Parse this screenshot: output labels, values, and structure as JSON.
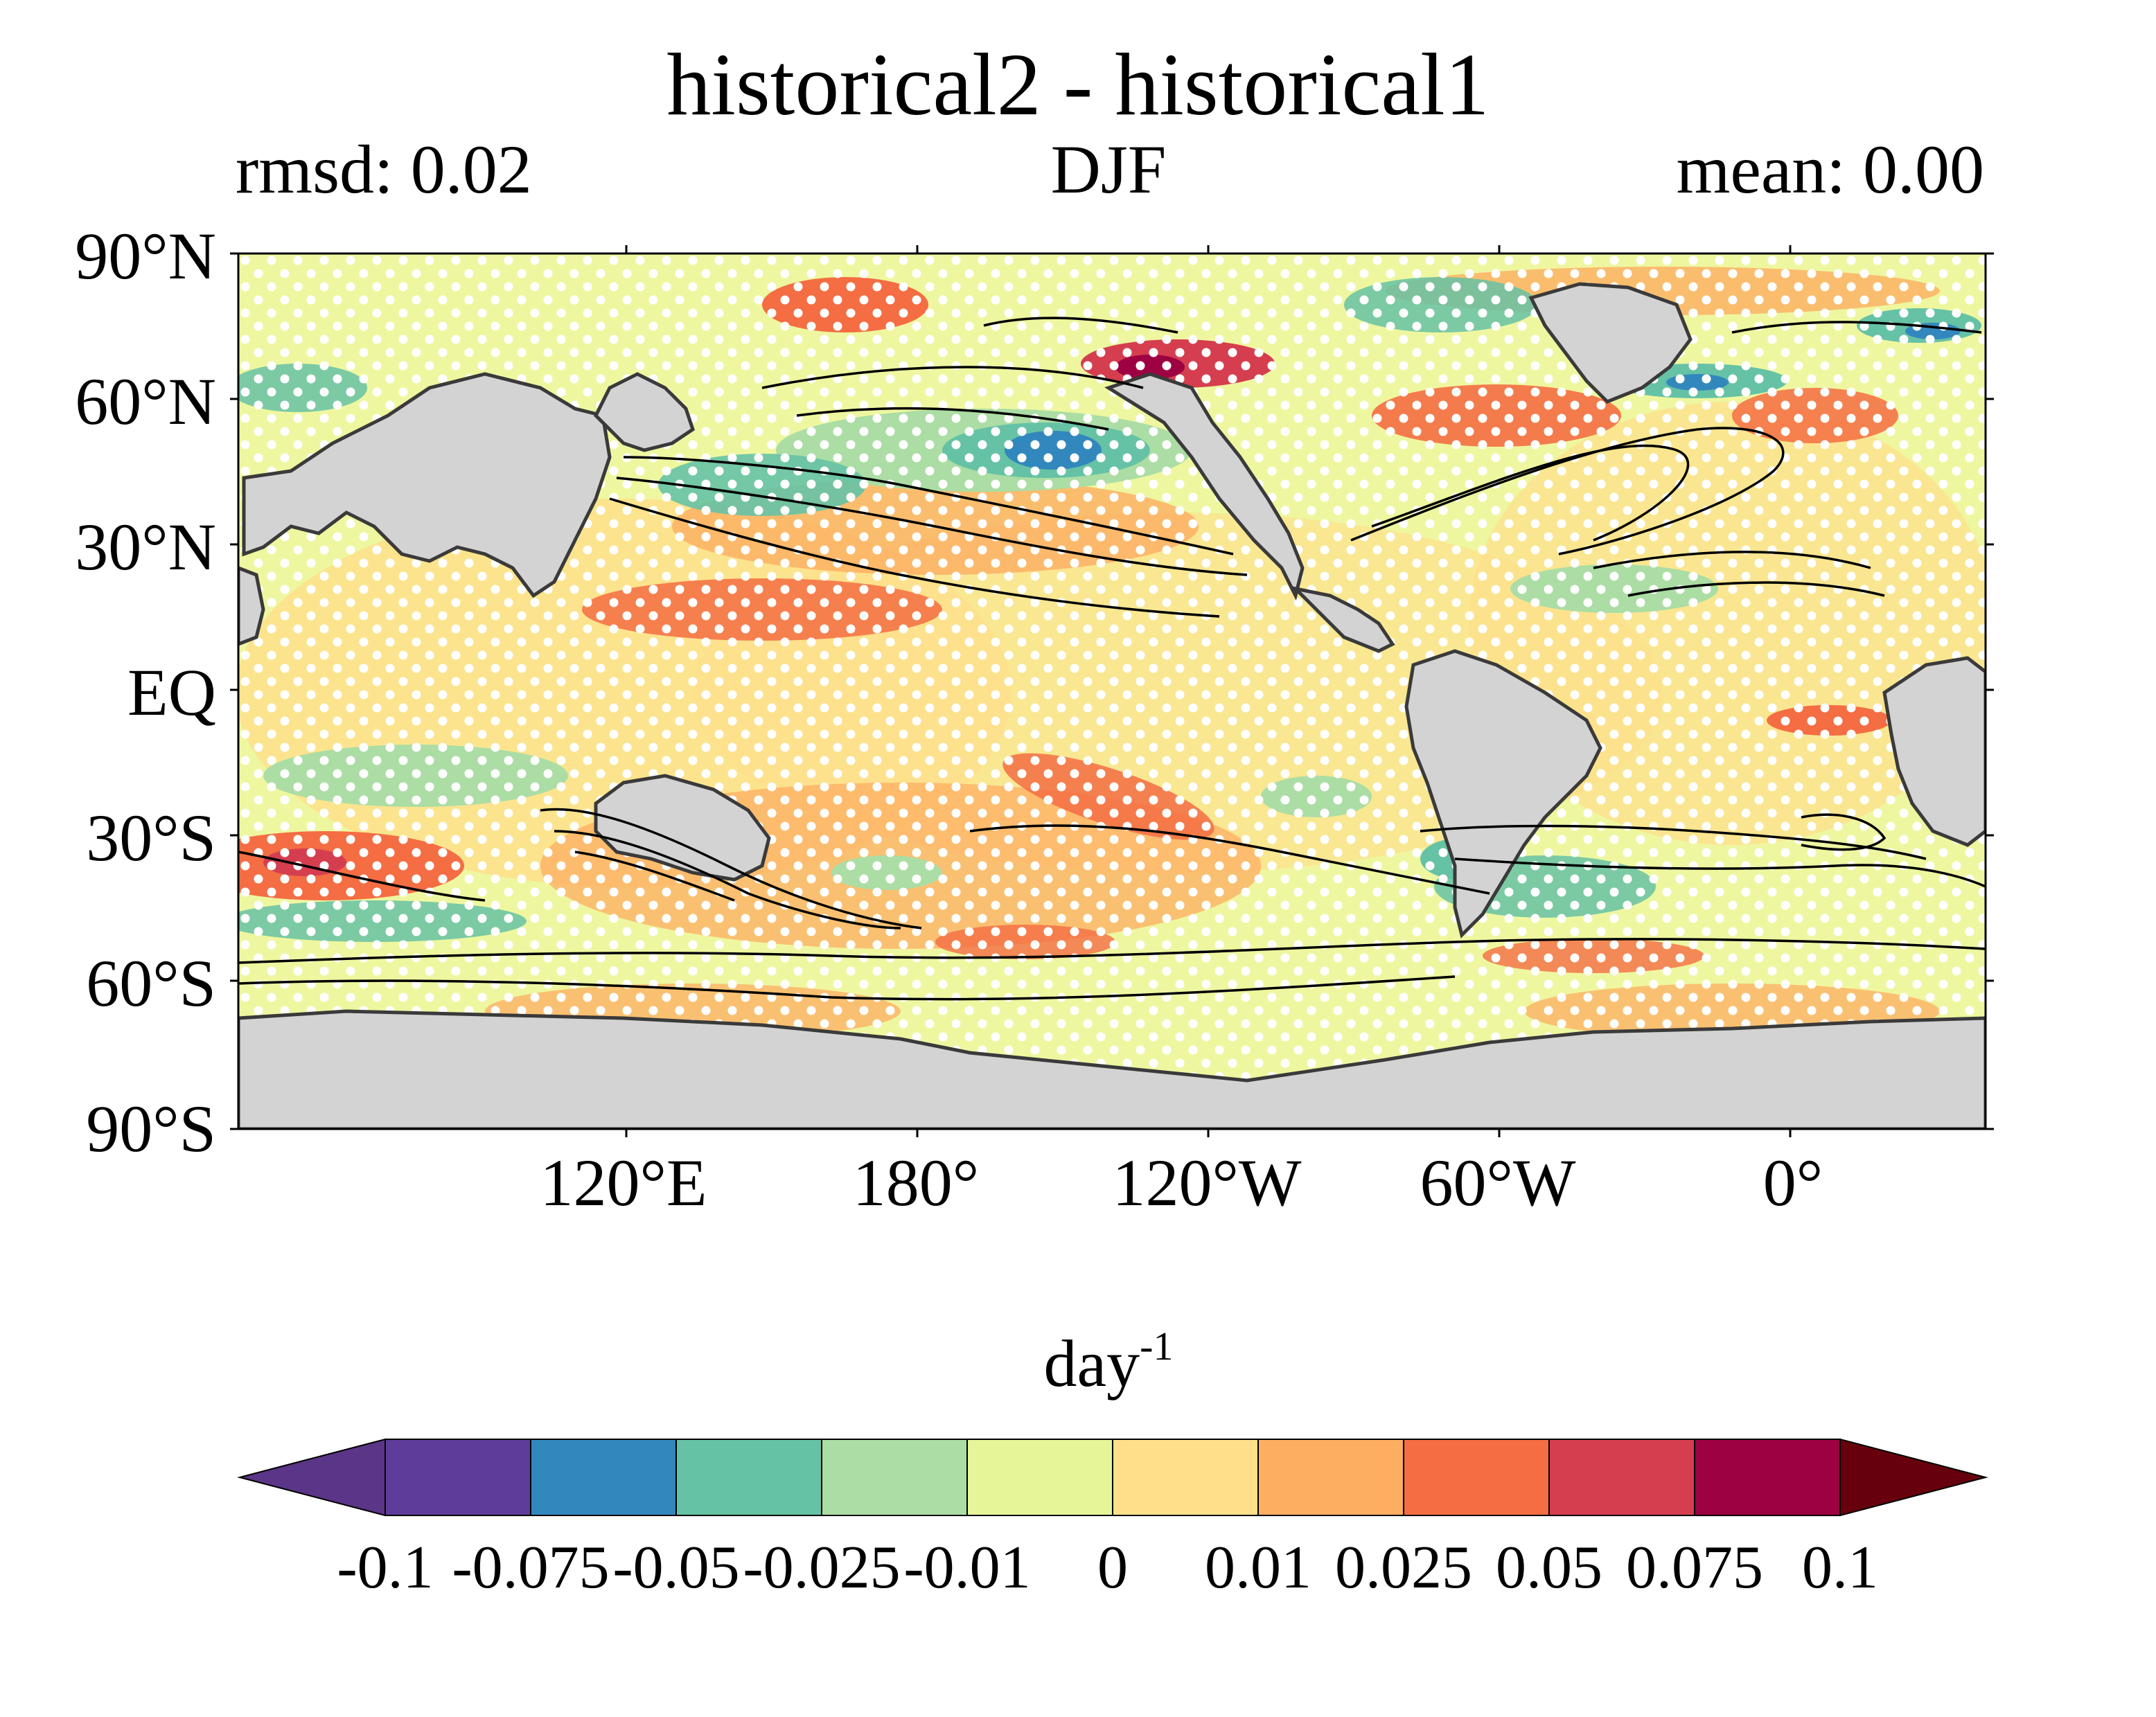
{
  "title": "historical2 - historical1",
  "stats": {
    "rmsd": "rmsd: 0.02",
    "season": "DJF",
    "mean": "mean: 0.00"
  },
  "lat_ticks": [
    "90°N",
    "60°N",
    "30°N",
    "EQ",
    "30°S",
    "60°S",
    "90°S"
  ],
  "lon_ticks": [
    "120°E",
    "180°",
    "120°W",
    "60°W",
    "0°"
  ],
  "colorbar": {
    "unit": "day",
    "unit_exponent": "-1",
    "ticks": [
      "-0.1",
      "-0.075",
      "-0.05",
      "-0.025",
      "-0.01",
      "0",
      "0.01",
      "0.025",
      "0.05",
      "0.075",
      "0.1"
    ],
    "colors": [
      "#5e3c99",
      "#3288bd",
      "#66c2a5",
      "#abdda4",
      "#e6f598",
      "#fee08b",
      "#fdae61",
      "#f46d43",
      "#d53e4f",
      "#9e0142"
    ],
    "under_color": "#5b3587",
    "over_color": "#67000d"
  },
  "map": {
    "land_color": "#d3d3d3",
    "stipple_color": "#ffffff",
    "contour_color": "#000000"
  }
}
